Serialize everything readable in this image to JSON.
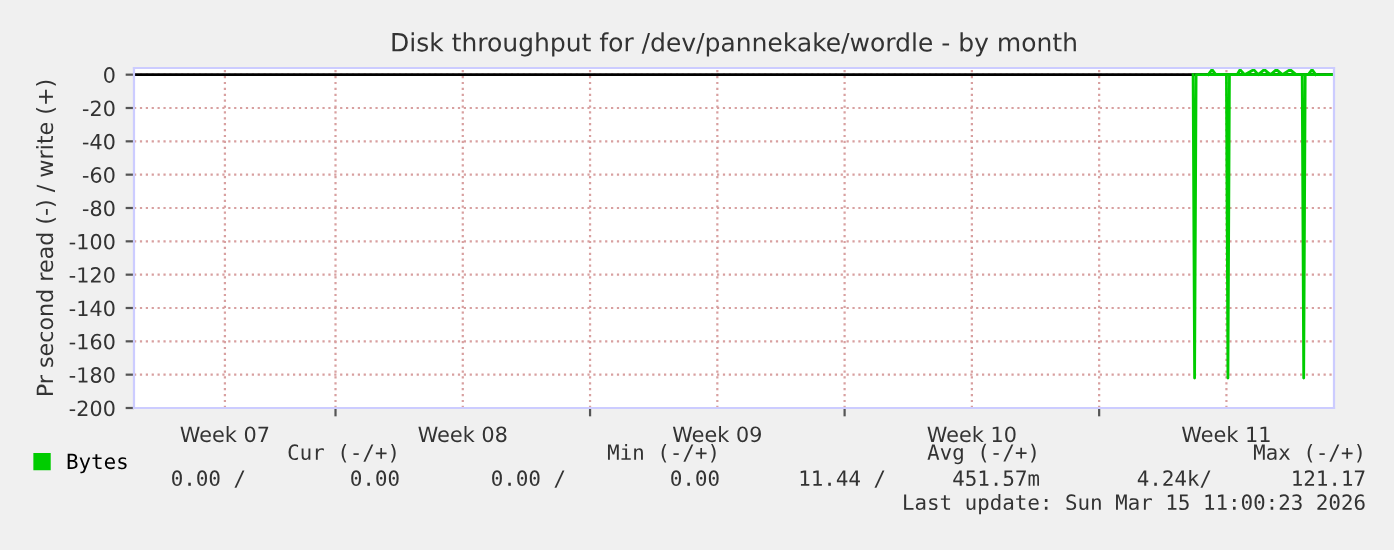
{
  "chart_data": {
    "type": "line",
    "title": "Disk throughput for /dev/pannekake/wordle - by month",
    "ylabel": "Pr second read (-) / write (+)",
    "xlim": [
      "2026-02-10T11:00",
      "2026-03-15T11:00"
    ],
    "xticks": [
      {
        "value": "2026-02-12T23:00",
        "label": "Week 07"
      },
      {
        "value": "2026-02-16",
        "label": null
      },
      {
        "value": "2026-02-19T12:00",
        "label": "Week 08"
      },
      {
        "value": "2026-02-23",
        "label": null
      },
      {
        "value": "2026-02-26T12:00",
        "label": "Week 09"
      },
      {
        "value": "2026-03-02",
        "label": null
      },
      {
        "value": "2026-03-05T12:00",
        "label": "Week 10"
      },
      {
        "value": "2026-03-09",
        "label": null
      },
      {
        "value": "2026-03-12T12:00",
        "label": "Week 11"
      }
    ],
    "ylim": [
      -200,
      4
    ],
    "yticks": [
      0,
      -20,
      -40,
      -60,
      -80,
      -100,
      -120,
      -140,
      -160,
      -180,
      -200
    ],
    "series": [
      {
        "name": "Bytes",
        "color": "#00cc00",
        "x": [
          "2026-03-11T14:00",
          "2026-03-11T15:00",
          "2026-03-11T16:00",
          "2026-03-12T12:00",
          "2026-03-12T13:00",
          "2026-03-12T14:00",
          "2026-03-14T14:00",
          "2026-03-14T15:00",
          "2026-03-14T16:00",
          "2026-03-15T10:00"
        ],
        "values": [
          0,
          -182,
          0,
          0,
          -182,
          0,
          0,
          -182,
          0,
          0
        ]
      },
      {
        "color": "#00cc00",
        "x": [
          "2026-03-12T00:00",
          "2026-03-12T02:30",
          "2026-03-12T05:00",
          "2026-03-12T19:00",
          "2026-03-12T21:00",
          "2026-03-13T00:00",
          "2026-03-13T06:00",
          "2026-03-13T09:00",
          "2026-03-13T13:00",
          "2026-03-13T17:00",
          "2026-03-13T21:00",
          "2026-03-14T01:00",
          "2026-03-14T06:00",
          "2026-03-14T10:00",
          "2026-03-14T18:00",
          "2026-03-14T20:30",
          "2026-03-14T23:00"
        ],
        "values": [
          0,
          3,
          0,
          0,
          3,
          0,
          3,
          0,
          3,
          0,
          3,
          0,
          3,
          0,
          0,
          3,
          0
        ]
      }
    ],
    "grid": true,
    "legend": "bottom left",
    "annotations": [
      "Cur (-/+)",
      "Min (-/+)",
      "Avg (-/+)",
      "Max (-/+)",
      "0.00 /",
      "0.00",
      "0.00 /",
      "0.00",
      "11.44 /",
      "451.57m",
      "4.24k/",
      "121.17",
      "Last update: Sun Mar 15 11:00:23 2026"
    ]
  }
}
